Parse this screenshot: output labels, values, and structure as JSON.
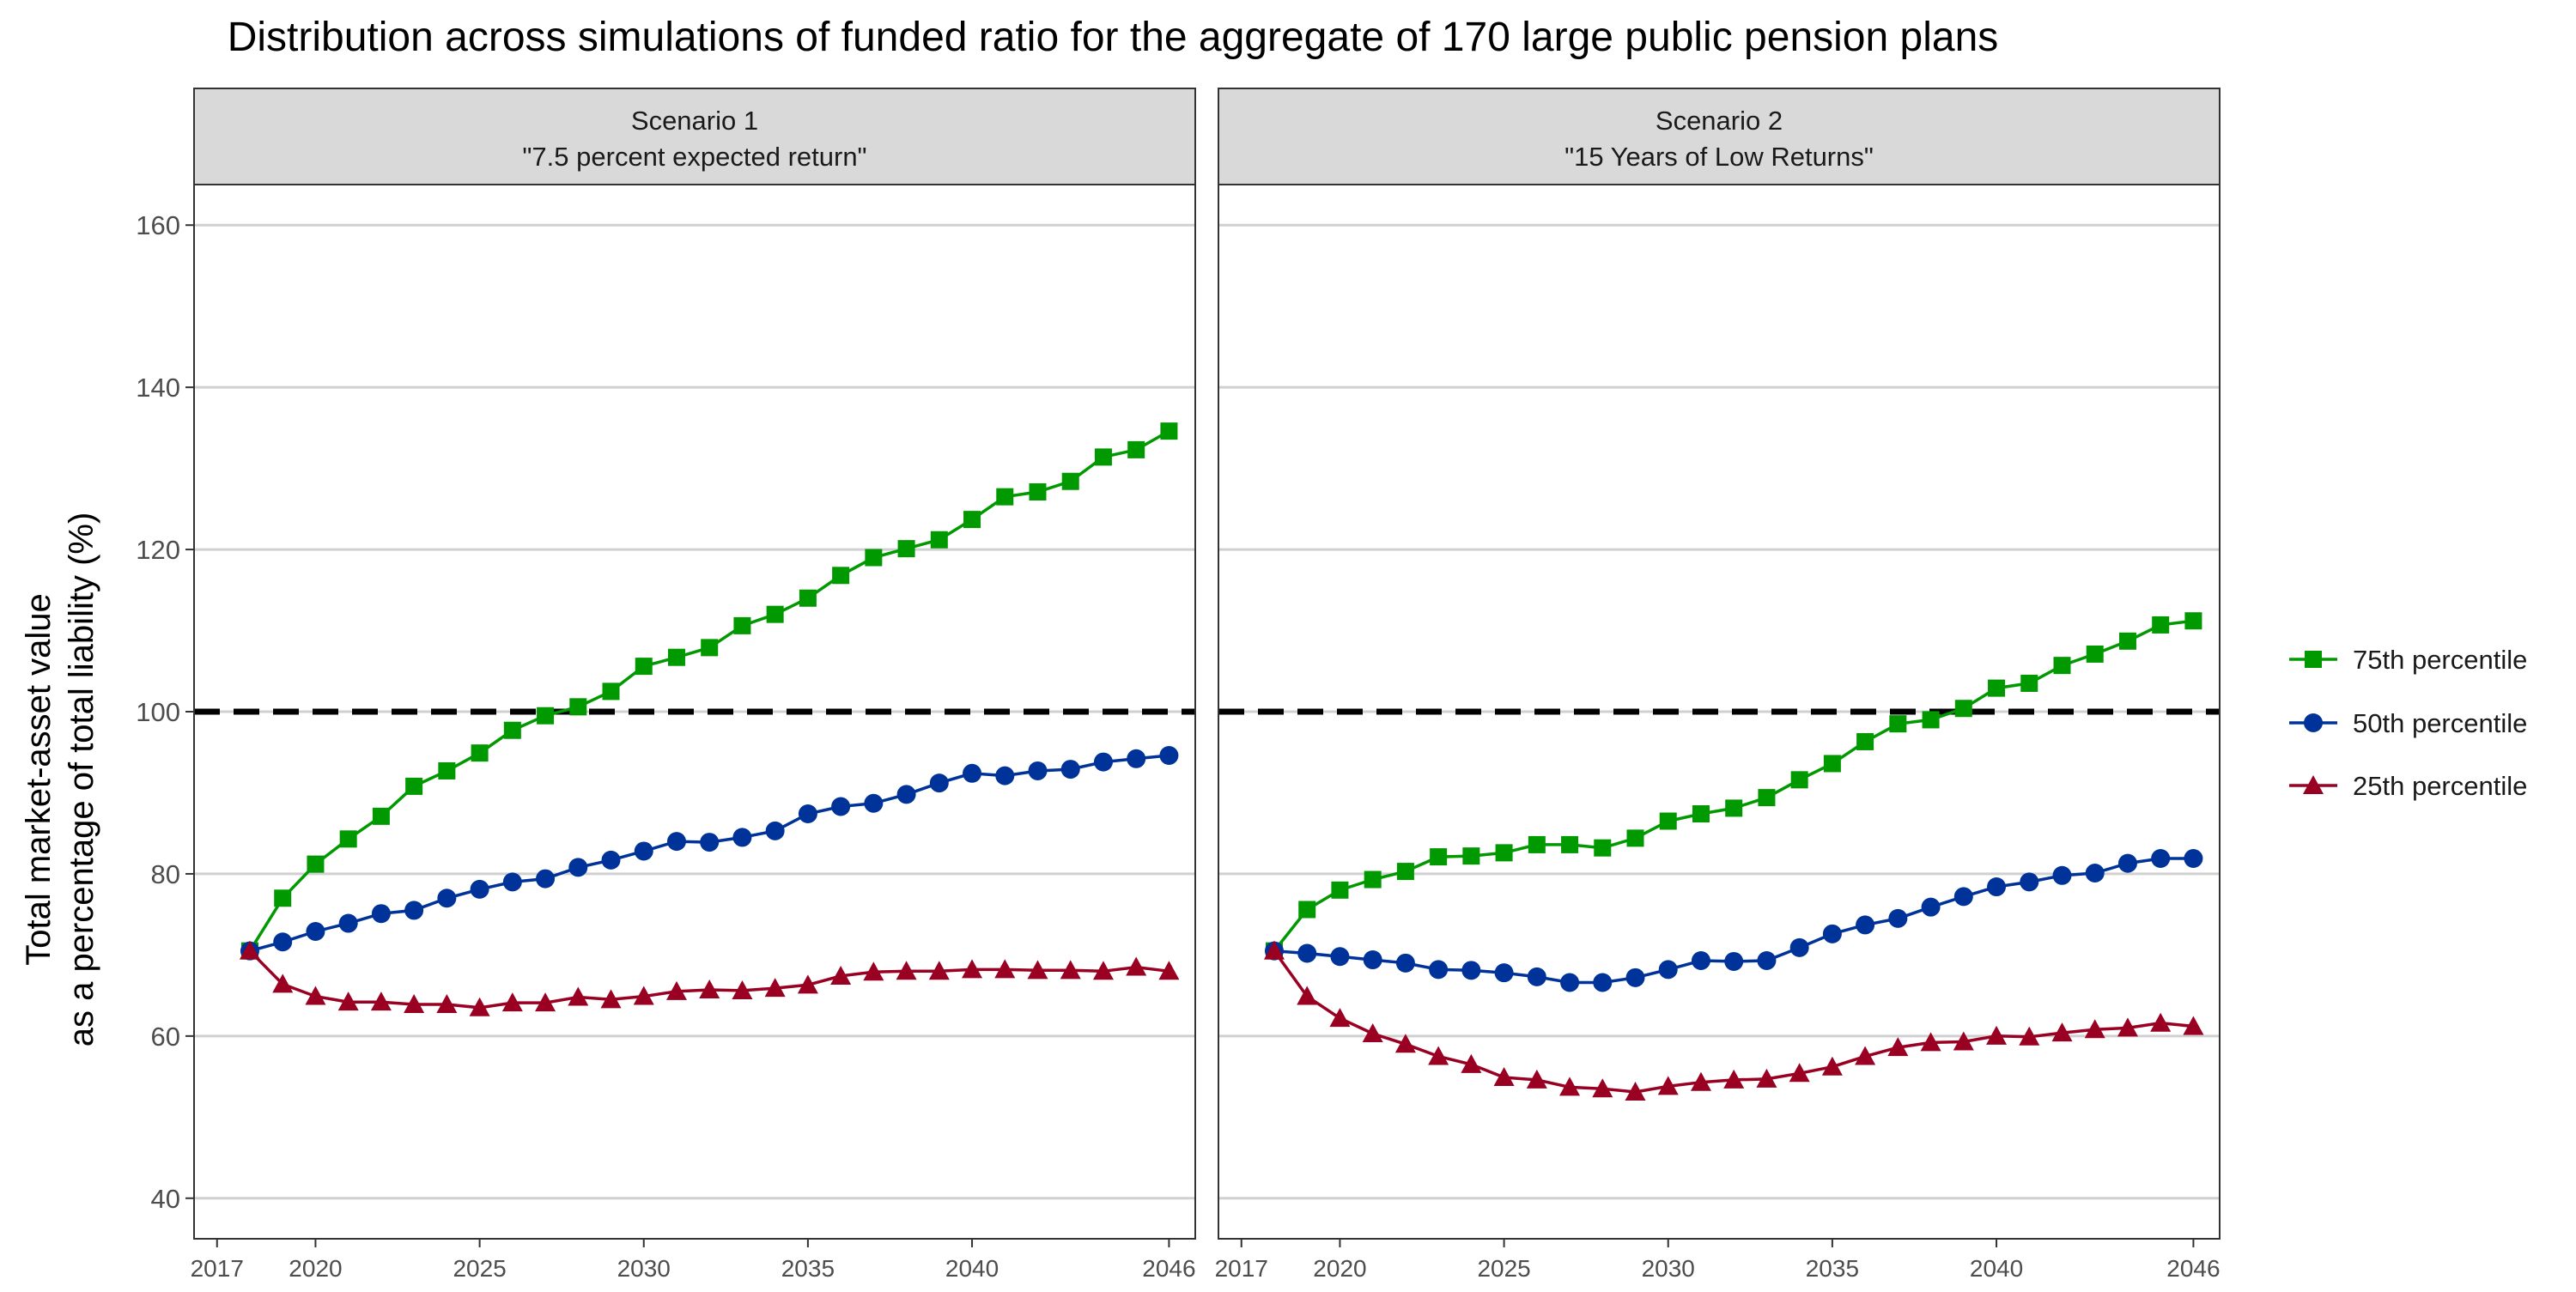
{
  "chart_data": {
    "type": "line",
    "title": "Distribution across simulations of funded ratio for the aggregate of 170 large public pension plans",
    "ylabel_line1": "Total market-asset value",
    "ylabel_line2": "as a percentage of total liability (%)",
    "xlabel": "",
    "xlim": [
      2016.3,
      2046.8
    ],
    "ylim": [
      35,
      165
    ],
    "y_ticks": [
      40,
      60,
      80,
      100,
      120,
      140,
      160
    ],
    "x_ticks": [
      2017,
      2020,
      2025,
      2030,
      2035,
      2040,
      2046
    ],
    "reference_line": {
      "y": 100,
      "style": "dashed",
      "color": "#000000"
    },
    "grid": "horizontal major lines",
    "legend_position": "right",
    "legend": [
      {
        "name": "75th percentile",
        "color": "#009900",
        "marker": "square"
      },
      {
        "name": "50th percentile",
        "color": "#003399",
        "marker": "circle"
      },
      {
        "name": "25th percentile",
        "color": "#990022",
        "marker": "triangle"
      }
    ],
    "x": [
      2018,
      2019,
      2020,
      2021,
      2022,
      2023,
      2024,
      2025,
      2026,
      2027,
      2028,
      2029,
      2030,
      2031,
      2032,
      2033,
      2034,
      2035,
      2036,
      2037,
      2038,
      2039,
      2040,
      2041,
      2042,
      2043,
      2044,
      2045,
      2046
    ],
    "panels": [
      {
        "title_line1": "Scenario 1",
        "title_line2": "\"7.5 percent expected return\"",
        "series": [
          {
            "name": "75th percentile",
            "values": [
              70.5,
              77.0,
              81.2,
              84.3,
              87.1,
              90.8,
              92.7,
              94.9,
              97.7,
              99.5,
              100.6,
              102.5,
              105.6,
              106.7,
              107.9,
              110.6,
              112.0,
              114.0,
              116.8,
              119.0,
              120.1,
              121.2,
              123.7,
              126.5,
              127.1,
              128.4,
              131.4,
              132.3,
              134.6
            ]
          },
          {
            "name": "50th percentile",
            "values": [
              70.5,
              71.6,
              72.9,
              73.9,
              75.1,
              75.5,
              77.0,
              78.1,
              79.0,
              79.4,
              80.8,
              81.7,
              82.8,
              84.0,
              83.9,
              84.5,
              85.3,
              87.4,
              88.3,
              88.7,
              89.8,
              91.2,
              92.4,
              92.1,
              92.7,
              92.9,
              93.8,
              94.2,
              94.6
            ]
          },
          {
            "name": "25th percentile",
            "values": [
              70.5,
              66.4,
              64.9,
              64.2,
              64.2,
              63.9,
              63.9,
              63.5,
              64.1,
              64.1,
              64.8,
              64.5,
              64.9,
              65.5,
              65.7,
              65.6,
              65.9,
              66.3,
              67.4,
              67.9,
              68.0,
              68.0,
              68.2,
              68.2,
              68.1,
              68.1,
              68.0,
              68.5,
              68.0
            ]
          }
        ]
      },
      {
        "title_line1": "Scenario 2",
        "title_line2": "\"15 Years of Low Returns\"",
        "series": [
          {
            "name": "75th percentile",
            "values": [
              70.5,
              75.6,
              78.0,
              79.3,
              80.3,
              82.1,
              82.2,
              82.6,
              83.6,
              83.6,
              83.2,
              84.4,
              86.5,
              87.4,
              88.1,
              89.4,
              91.6,
              93.6,
              96.3,
              98.5,
              99.0,
              100.4,
              102.9,
              103.5,
              105.7,
              107.1,
              108.7,
              110.7,
              111.2
            ]
          },
          {
            "name": "50th percentile",
            "values": [
              70.5,
              70.2,
              69.8,
              69.4,
              69.0,
              68.2,
              68.1,
              67.8,
              67.3,
              66.6,
              66.6,
              67.2,
              68.2,
              69.3,
              69.2,
              69.3,
              70.9,
              72.6,
              73.7,
              74.5,
              75.9,
              77.2,
              78.4,
              79.0,
              79.8,
              80.1,
              81.3,
              81.9,
              81.9
            ]
          },
          {
            "name": "25th percentile",
            "values": [
              70.5,
              64.9,
              62.2,
              60.3,
              59.0,
              57.5,
              56.5,
              54.9,
              54.6,
              53.7,
              53.5,
              53.1,
              53.8,
              54.3,
              54.6,
              54.7,
              55.4,
              56.2,
              57.5,
              58.6,
              59.2,
              59.3,
              60.0,
              59.9,
              60.4,
              60.8,
              61.0,
              61.6,
              61.2
            ]
          }
        ]
      }
    ]
  }
}
